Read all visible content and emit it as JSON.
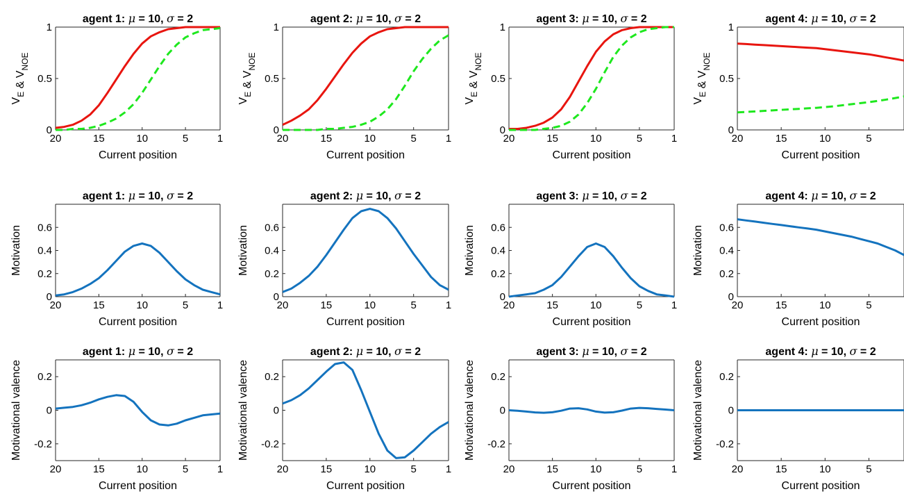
{
  "figure": {
    "xlabel": "Current position",
    "x_tick_labels": [
      "20",
      "15",
      "10",
      "5",
      "1"
    ],
    "colors": {
      "V_E": "#e8150f",
      "V_NOE": "#1ee81e",
      "motivation": "#1473be",
      "frame": "#262626"
    }
  },
  "chart_data": [
    {
      "type": "line",
      "row": 1,
      "col": 1,
      "title_prefix": "agent 1: ",
      "title_param": "μ = 10, σ = 2",
      "ylabel": "V_E & V_NOE",
      "xlabel": "Current position",
      "xlim": [
        20,
        1
      ],
      "ylim": [
        0,
        1
      ],
      "y_ticks": [
        0,
        0.5,
        1
      ],
      "y_tick_labels": [
        "0",
        "0.5",
        "1"
      ],
      "x": [
        20,
        19,
        18,
        17,
        16,
        15,
        14,
        13,
        12,
        11,
        10,
        9,
        8,
        7,
        6,
        5,
        4,
        3,
        2,
        1
      ],
      "series": [
        {
          "key": "V_E",
          "style": "solid",
          "values": [
            0.02,
            0.03,
            0.05,
            0.09,
            0.15,
            0.24,
            0.36,
            0.49,
            0.62,
            0.74,
            0.84,
            0.91,
            0.95,
            0.98,
            0.99,
            1.0,
            1.0,
            1.0,
            1.0,
            1.0
          ]
        },
        {
          "key": "V_NOE",
          "style": "dashed",
          "values": [
            0.0,
            0.0,
            0.01,
            0.01,
            0.02,
            0.04,
            0.07,
            0.11,
            0.17,
            0.25,
            0.36,
            0.49,
            0.62,
            0.74,
            0.83,
            0.9,
            0.94,
            0.97,
            0.98,
            0.99
          ]
        }
      ]
    },
    {
      "type": "line",
      "row": 1,
      "col": 2,
      "title_prefix": "agent 2: ",
      "title_param": "μ = 10, σ = 2",
      "ylabel": "V_E & V_NOE",
      "xlabel": "Current position",
      "xlim": [
        20,
        1
      ],
      "ylim": [
        0,
        1
      ],
      "y_ticks": [
        0,
        0.5,
        1
      ],
      "y_tick_labels": [
        "0",
        "0.5",
        "1"
      ],
      "x": [
        20,
        19,
        18,
        17,
        16,
        15,
        14,
        13,
        12,
        11,
        10,
        9,
        8,
        7,
        6,
        5,
        4,
        3,
        2,
        1
      ],
      "series": [
        {
          "key": "V_E",
          "style": "solid",
          "values": [
            0.05,
            0.09,
            0.14,
            0.2,
            0.29,
            0.4,
            0.52,
            0.64,
            0.75,
            0.84,
            0.91,
            0.95,
            0.98,
            0.99,
            1.0,
            1.0,
            1.0,
            1.0,
            1.0,
            1.0
          ]
        },
        {
          "key": "V_NOE",
          "style": "dashed",
          "values": [
            0.0,
            0.0,
            0.0,
            0.0,
            0.0,
            0.01,
            0.01,
            0.02,
            0.03,
            0.05,
            0.08,
            0.13,
            0.2,
            0.3,
            0.43,
            0.57,
            0.69,
            0.79,
            0.87,
            0.92
          ]
        }
      ]
    },
    {
      "type": "line",
      "row": 1,
      "col": 3,
      "title_prefix": "agent 3: ",
      "title_param": "μ = 10, σ = 2",
      "ylabel": "V_E & V_NOE",
      "xlabel": "Current position",
      "xlim": [
        20,
        1
      ],
      "ylim": [
        0,
        1
      ],
      "y_ticks": [
        0,
        0.5,
        1
      ],
      "y_tick_labels": [
        "0",
        "0.5",
        "1"
      ],
      "x": [
        20,
        19,
        18,
        17,
        16,
        15,
        14,
        13,
        12,
        11,
        10,
        9,
        8,
        7,
        6,
        5,
        4,
        3,
        2,
        1
      ],
      "series": [
        {
          "key": "V_E",
          "style": "solid",
          "values": [
            0.01,
            0.01,
            0.02,
            0.04,
            0.07,
            0.12,
            0.2,
            0.32,
            0.47,
            0.62,
            0.76,
            0.86,
            0.93,
            0.97,
            0.99,
            1.0,
            1.0,
            1.0,
            1.0,
            1.0
          ]
        },
        {
          "key": "V_NOE",
          "style": "dashed",
          "values": [
            0.0,
            0.0,
            0.0,
            0.0,
            0.01,
            0.02,
            0.04,
            0.08,
            0.15,
            0.26,
            0.4,
            0.56,
            0.71,
            0.82,
            0.9,
            0.95,
            0.98,
            0.99,
            1.0,
            1.0
          ]
        }
      ]
    },
    {
      "type": "line",
      "row": 1,
      "col": 4,
      "title_prefix": "agent 4: ",
      "title_param": "μ = 10, σ = 2",
      "ylabel": "V_E & V_NOE",
      "xlabel": "Current position",
      "xlim": [
        20,
        1
      ],
      "ylim": [
        0,
        1
      ],
      "y_ticks": [
        0,
        0.5,
        1
      ],
      "y_tick_labels": [
        "0",
        "0.5",
        "1"
      ],
      "x": [
        20,
        19,
        18,
        17,
        16,
        15,
        14,
        13,
        12,
        11,
        10,
        9,
        8,
        7,
        6,
        5,
        4,
        3,
        2,
        1
      ],
      "series": [
        {
          "key": "V_E",
          "style": "solid",
          "values": [
            0.84,
            0.835,
            0.83,
            0.825,
            0.82,
            0.815,
            0.81,
            0.805,
            0.8,
            0.795,
            0.785,
            0.775,
            0.765,
            0.755,
            0.745,
            0.735,
            0.72,
            0.705,
            0.69,
            0.675
          ]
        },
        {
          "key": "V_NOE",
          "style": "dashed",
          "values": [
            0.17,
            0.175,
            0.18,
            0.185,
            0.19,
            0.195,
            0.2,
            0.205,
            0.21,
            0.215,
            0.222,
            0.23,
            0.24,
            0.25,
            0.26,
            0.27,
            0.282,
            0.295,
            0.31,
            0.325
          ]
        }
      ]
    },
    {
      "type": "line",
      "row": 2,
      "col": 1,
      "title_prefix": "agent 1: ",
      "title_param": "μ = 10, σ = 2",
      "ylabel": "Motivation",
      "xlabel": "Current position",
      "xlim": [
        20,
        1
      ],
      "ylim": [
        0,
        0.8
      ],
      "y_ticks": [
        0,
        0.2,
        0.4,
        0.6
      ],
      "y_tick_labels": [
        "0",
        "0.2",
        "0.4",
        "0.6"
      ],
      "x": [
        20,
        19,
        18,
        17,
        16,
        15,
        14,
        13,
        12,
        11,
        10,
        9,
        8,
        7,
        6,
        5,
        4,
        3,
        2,
        1
      ],
      "series": [
        {
          "key": "motivation",
          "style": "solid",
          "values": [
            0.01,
            0.02,
            0.04,
            0.07,
            0.11,
            0.16,
            0.23,
            0.31,
            0.39,
            0.44,
            0.46,
            0.44,
            0.38,
            0.3,
            0.22,
            0.15,
            0.1,
            0.06,
            0.04,
            0.02
          ]
        }
      ]
    },
    {
      "type": "line",
      "row": 2,
      "col": 2,
      "title_prefix": "agent 2: ",
      "title_param": "μ = 10, σ = 2",
      "ylabel": "Motivation",
      "xlabel": "Current position",
      "xlim": [
        20,
        1
      ],
      "ylim": [
        0,
        0.8
      ],
      "y_ticks": [
        0,
        0.2,
        0.4,
        0.6
      ],
      "y_tick_labels": [
        "0",
        "0.2",
        "0.4",
        "0.6"
      ],
      "x": [
        20,
        19,
        18,
        17,
        16,
        15,
        14,
        13,
        12,
        11,
        10,
        9,
        8,
        7,
        6,
        5,
        4,
        3,
        2,
        1
      ],
      "series": [
        {
          "key": "motivation",
          "style": "solid",
          "values": [
            0.04,
            0.07,
            0.12,
            0.18,
            0.26,
            0.36,
            0.47,
            0.58,
            0.68,
            0.74,
            0.76,
            0.74,
            0.68,
            0.59,
            0.48,
            0.37,
            0.27,
            0.17,
            0.1,
            0.06
          ]
        }
      ]
    },
    {
      "type": "line",
      "row": 2,
      "col": 3,
      "title_prefix": "agent 3: ",
      "title_param": "μ = 10, σ = 2",
      "ylabel": "Motivation",
      "xlabel": "Current position",
      "xlim": [
        20,
        1
      ],
      "ylim": [
        0,
        0.8
      ],
      "y_ticks": [
        0,
        0.2,
        0.4,
        0.6
      ],
      "y_tick_labels": [
        "0",
        "0.2",
        "0.4",
        "0.6"
      ],
      "x": [
        20,
        19,
        18,
        17,
        16,
        15,
        14,
        13,
        12,
        11,
        10,
        9,
        8,
        7,
        6,
        5,
        4,
        3,
        2,
        1
      ],
      "series": [
        {
          "key": "motivation",
          "style": "solid",
          "values": [
            0.0,
            0.01,
            0.02,
            0.03,
            0.06,
            0.1,
            0.17,
            0.26,
            0.35,
            0.43,
            0.46,
            0.43,
            0.35,
            0.25,
            0.16,
            0.09,
            0.05,
            0.02,
            0.01,
            0.0
          ]
        }
      ]
    },
    {
      "type": "line",
      "row": 2,
      "col": 4,
      "title_prefix": "agent 4: ",
      "title_param": "μ = 10, σ = 2",
      "ylabel": "Motivation",
      "xlabel": "Current position",
      "xlim": [
        20,
        1
      ],
      "ylim": [
        0,
        0.8
      ],
      "y_ticks": [
        0,
        0.2,
        0.4,
        0.6
      ],
      "y_tick_labels": [
        "0",
        "0.2",
        "0.4",
        "0.6"
      ],
      "x": [
        20,
        19,
        18,
        17,
        16,
        15,
        14,
        13,
        12,
        11,
        10,
        9,
        8,
        7,
        6,
        5,
        4,
        3,
        2,
        1
      ],
      "series": [
        {
          "key": "motivation",
          "style": "solid",
          "values": [
            0.67,
            0.66,
            0.65,
            0.64,
            0.63,
            0.62,
            0.61,
            0.6,
            0.59,
            0.58,
            0.565,
            0.55,
            0.535,
            0.52,
            0.5,
            0.48,
            0.46,
            0.43,
            0.4,
            0.36
          ]
        }
      ]
    },
    {
      "type": "line",
      "row": 3,
      "col": 1,
      "title_prefix": "agent 1: ",
      "title_param": "μ = 10, σ = 2",
      "ylabel": "Motivational valence",
      "xlabel": "Current position",
      "xlim": [
        20,
        1
      ],
      "ylim": [
        -0.3,
        0.3
      ],
      "y_ticks": [
        -0.2,
        0,
        0.2
      ],
      "y_tick_labels": [
        "-0.2",
        "0",
        "0.2"
      ],
      "x": [
        20,
        19,
        18,
        17,
        16,
        15,
        14,
        13,
        12,
        11,
        10,
        9,
        8,
        7,
        6,
        5,
        4,
        3,
        2,
        1
      ],
      "series": [
        {
          "key": "motivation",
          "style": "solid",
          "values": [
            0.01,
            0.015,
            0.02,
            0.03,
            0.045,
            0.065,
            0.08,
            0.09,
            0.085,
            0.05,
            -0.01,
            -0.06,
            -0.085,
            -0.09,
            -0.08,
            -0.06,
            -0.045,
            -0.03,
            -0.025,
            -0.02
          ]
        }
      ]
    },
    {
      "type": "line",
      "row": 3,
      "col": 2,
      "title_prefix": "agent 2: ",
      "title_param": "μ = 10, σ = 2",
      "ylabel": "Motivational valence",
      "xlabel": "Current position",
      "xlim": [
        20,
        1
      ],
      "ylim": [
        -0.3,
        0.3
      ],
      "y_ticks": [
        -0.2,
        0,
        0.2
      ],
      "y_tick_labels": [
        "-0.2",
        "0",
        "0.2"
      ],
      "x": [
        20,
        19,
        18,
        17,
        16,
        15,
        14,
        13,
        12,
        11,
        10,
        9,
        8,
        7,
        6,
        5,
        4,
        3,
        2,
        1
      ],
      "series": [
        {
          "key": "motivation",
          "style": "solid",
          "values": [
            0.04,
            0.06,
            0.09,
            0.13,
            0.18,
            0.23,
            0.275,
            0.285,
            0.24,
            0.12,
            -0.01,
            -0.14,
            -0.24,
            -0.285,
            -0.28,
            -0.24,
            -0.19,
            -0.14,
            -0.1,
            -0.07
          ]
        }
      ]
    },
    {
      "type": "line",
      "row": 3,
      "col": 3,
      "title_prefix": "agent 3: ",
      "title_param": "μ = 10, σ = 2",
      "ylabel": "Motivational valence",
      "xlabel": "Current position",
      "xlim": [
        20,
        1
      ],
      "ylim": [
        -0.3,
        0.3
      ],
      "y_ticks": [
        -0.2,
        0,
        0.2
      ],
      "y_tick_labels": [
        "-0.2",
        "0",
        "0.2"
      ],
      "x": [
        20,
        19,
        18,
        17,
        16,
        15,
        14,
        13,
        12,
        11,
        10,
        9,
        8,
        7,
        6,
        5,
        4,
        3,
        2,
        1
      ],
      "series": [
        {
          "key": "motivation",
          "style": "solid",
          "values": [
            0.0,
            -0.003,
            -0.008,
            -0.013,
            -0.015,
            -0.012,
            -0.003,
            0.01,
            0.012,
            0.005,
            -0.008,
            -0.014,
            -0.012,
            -0.002,
            0.01,
            0.014,
            0.012,
            0.008,
            0.004,
            0.0
          ]
        }
      ]
    },
    {
      "type": "line",
      "row": 3,
      "col": 4,
      "title_prefix": "agent 4: ",
      "title_param": "μ = 10, σ = 2",
      "ylabel": "Motivational valence",
      "xlabel": "Current position",
      "xlim": [
        20,
        1
      ],
      "ylim": [
        -0.3,
        0.3
      ],
      "y_ticks": [
        -0.2,
        0,
        0.2
      ],
      "y_tick_labels": [
        "-0.2",
        "0",
        "0.2"
      ],
      "x": [
        20,
        19,
        18,
        17,
        16,
        15,
        14,
        13,
        12,
        11,
        10,
        9,
        8,
        7,
        6,
        5,
        4,
        3,
        2,
        1
      ],
      "series": [
        {
          "key": "motivation",
          "style": "solid",
          "values": [
            0,
            0,
            0,
            0,
            0,
            0,
            0,
            0,
            0,
            0,
            0,
            0,
            0,
            0,
            0,
            0,
            0,
            0,
            0,
            0
          ]
        }
      ]
    }
  ]
}
